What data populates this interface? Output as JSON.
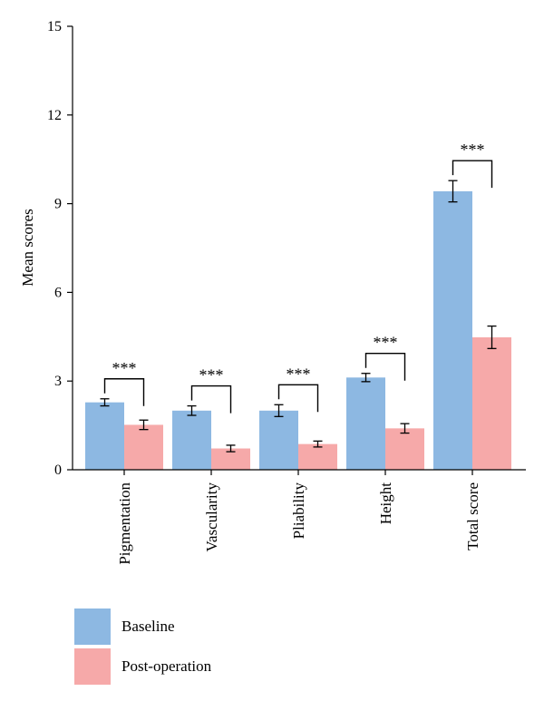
{
  "chart_data": {
    "type": "bar",
    "categories": [
      "Pigmentation",
      "Vascularity",
      "Pliability",
      "Height",
      "Total score"
    ],
    "series": [
      {
        "name": "Baseline",
        "color": "#8db8e2",
        "values": [
          2.28,
          2.0,
          2.0,
          3.12,
          9.42
        ],
        "errors": [
          0.12,
          0.16,
          0.2,
          0.14,
          0.36
        ]
      },
      {
        "name": "Post-operation",
        "color": "#f6a9a9",
        "values": [
          1.52,
          0.72,
          0.87,
          1.4,
          4.48
        ],
        "errors": [
          0.16,
          0.11,
          0.1,
          0.16,
          0.38
        ]
      }
    ],
    "ylabel": "Mean scores",
    "xlabel": "",
    "title": "",
    "ylim": [
      0,
      15
    ],
    "yticks": [
      "0",
      "3",
      "6",
      "9",
      "12",
      "15"
    ],
    "significance": [
      "***",
      "***",
      "***",
      "***",
      "***"
    ],
    "legend_position": "bottom-left",
    "grid": false
  }
}
